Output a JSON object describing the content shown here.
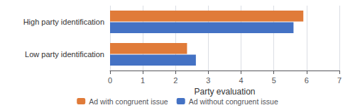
{
  "chart_data": {
    "type": "bar",
    "orientation": "horizontal",
    "categories": [
      "High party identification",
      "Low party identification"
    ],
    "series": [
      {
        "name": "Ad with congruent issue",
        "color": "#E07B39",
        "values": [
          5.9,
          2.35
        ]
      },
      {
        "name": "Ad without congruent issue",
        "color": "#4472C4",
        "values": [
          5.6,
          2.62
        ]
      }
    ],
    "xlabel": "Party evaluation",
    "xlim": [
      0,
      7
    ],
    "xticks": [
      0,
      1,
      2,
      3,
      4,
      5,
      6,
      7
    ],
    "grid": true,
    "legend": "bottom"
  }
}
